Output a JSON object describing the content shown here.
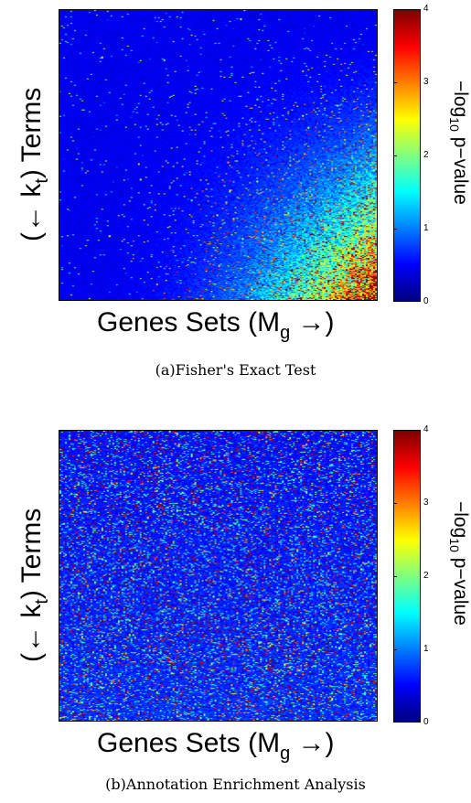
{
  "chart_data": [
    {
      "type": "heatmap",
      "panel_id": "a",
      "caption": "(a)Fisher's Exact Test",
      "xlabel_main": "Genes Sets (M",
      "xlabel_sub": "g",
      "xlabel_tail": " →)",
      "ylabel_head": "(← k",
      "ylabel_sub": "t",
      "ylabel_tail": ") Terms",
      "colorbar_label_head": "−log",
      "colorbar_label_sub": "10",
      "colorbar_label_tail": " p−value",
      "colorbar_ticks": [
        "0",
        "1",
        "2",
        "3",
        "4"
      ],
      "zlim": [
        0,
        4
      ],
      "colormap": "jet",
      "pattern": "mostly low values; increasing toward the right and bottom (bottom-right corner reaches 3–4)"
    },
    {
      "type": "heatmap",
      "panel_id": "b",
      "caption": "(b)Annotation Enrichment Analysis",
      "xlabel_main": "Genes Sets (M",
      "xlabel_sub": "g",
      "xlabel_tail": " →)",
      "ylabel_head": "(← k",
      "ylabel_sub": "t",
      "ylabel_tail": ") Terms",
      "colorbar_label_head": "−log",
      "colorbar_label_sub": "10",
      "colorbar_label_tail": " p−value",
      "colorbar_ticks": [
        "0",
        "1",
        "2",
        "3",
        "4"
      ],
      "zlim": [
        0,
        4
      ],
      "colormap": "jet",
      "pattern": "uniformly scattered values across the whole matrix; many cells in 1–4 range everywhere"
    }
  ]
}
